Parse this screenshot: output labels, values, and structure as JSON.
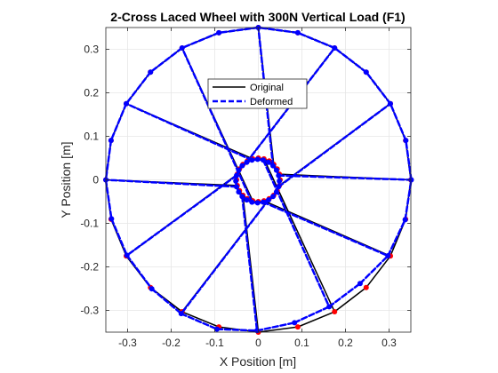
{
  "chart_data": {
    "type": "line",
    "title": "2-Cross Laced Wheel with 300N Vertical Load (F1)",
    "xlabel": "X Position [m]",
    "ylabel": "Y Position [m]",
    "xlim": [
      -0.35,
      0.35
    ],
    "ylim": [
      -0.35,
      0.35
    ],
    "xticks": [
      -0.3,
      -0.2,
      -0.1,
      0,
      0.1,
      0.2,
      0.3
    ],
    "yticks": [
      -0.3,
      -0.2,
      -0.1,
      0,
      0.1,
      0.2,
      0.3
    ],
    "xtick_labels": [
      "-0.3",
      "-0.2",
      "-0.1",
      "0",
      "0.1",
      "0.2",
      "0.3"
    ],
    "ytick_labels": [
      "-0.3",
      "-0.2",
      "-0.1",
      "0",
      "0.1",
      "0.2",
      "0.3"
    ],
    "grid": true,
    "legend_position": "top-center",
    "legend": [
      {
        "label": "Original",
        "color": "#000000",
        "style": "solid",
        "width": 1.5
      },
      {
        "label": "Deformed",
        "color": "#0000ff",
        "style": "dashed",
        "width": 2.5
      }
    ],
    "colors": {
      "original": "#000000",
      "original_nodes": "#ff0000",
      "deformed": "#0000ff",
      "deformed_nodes": "#0000ff"
    },
    "rim_radius": 0.35,
    "hub_radius": 0.05,
    "node_count": 24,
    "original": {
      "rim": [
        [
          0.35,
          0
        ],
        [
          0.338,
          0.0906
        ],
        [
          0.3031,
          0.175
        ],
        [
          0.2475,
          0.2475
        ],
        [
          0.175,
          0.3031
        ],
        [
          0.0906,
          0.338
        ],
        [
          0,
          0.35
        ],
        [
          -0.0906,
          0.338
        ],
        [
          -0.175,
          0.3031
        ],
        [
          -0.2475,
          0.2475
        ],
        [
          -0.3031,
          0.175
        ],
        [
          -0.338,
          0.0906
        ],
        [
          -0.35,
          0
        ],
        [
          -0.338,
          -0.0906
        ],
        [
          -0.3031,
          -0.175
        ],
        [
          -0.2475,
          -0.2475
        ],
        [
          -0.175,
          -0.3031
        ],
        [
          -0.0906,
          -0.338
        ],
        [
          0,
          -0.35
        ],
        [
          0.0906,
          -0.338
        ],
        [
          0.175,
          -0.3031
        ],
        [
          0.2475,
          -0.2475
        ],
        [
          0.3031,
          -0.175
        ],
        [
          0.338,
          -0.0906
        ]
      ],
      "hub": [
        [
          0.05,
          0
        ],
        [
          0.0483,
          0.0129
        ],
        [
          0.0433,
          0.025
        ],
        [
          0.0354,
          0.0354
        ],
        [
          0.025,
          0.0433
        ],
        [
          0.0129,
          0.0483
        ],
        [
          0,
          0.05
        ],
        [
          -0.0129,
          0.0483
        ],
        [
          -0.025,
          0.0433
        ],
        [
          -0.0354,
          0.0354
        ],
        [
          -0.0433,
          0.025
        ],
        [
          -0.0483,
          0.0129
        ],
        [
          -0.05,
          0
        ],
        [
          -0.0483,
          -0.0129
        ],
        [
          -0.0433,
          -0.025
        ],
        [
          -0.0354,
          -0.0354
        ],
        [
          -0.025,
          -0.0433
        ],
        [
          -0.0129,
          -0.0483
        ],
        [
          0,
          -0.05
        ],
        [
          0.0129,
          -0.0483
        ],
        [
          0.025,
          -0.0433
        ],
        [
          0.0354,
          -0.0354
        ],
        [
          0.0433,
          -0.025
        ],
        [
          0.0483,
          -0.0129
        ]
      ],
      "spokes": [
        [
          [
            0.0483,
            -0.0129
          ],
          [
            0.3031,
            0.175
          ]
        ],
        [
          [
            -0.0483,
            0.0129
          ],
          [
            -0.3031,
            -0.175
          ]
        ],
        [
          [
            0.0354,
            0.0354
          ],
          [
            0.0,
            0.35
          ]
        ],
        [
          [
            -0.0354,
            -0.0354
          ],
          [
            0.0,
            -0.35
          ]
        ],
        [
          [
            -0.0129,
            0.0483
          ],
          [
            -0.3031,
            0.175
          ]
        ],
        [
          [
            0.0129,
            -0.0483
          ],
          [
            0.3031,
            -0.175
          ]
        ],
        [
          [
            -0.0483,
            -0.0129
          ],
          [
            -0.35,
            0.0
          ]
        ],
        [
          [
            0.0483,
            0.0129
          ],
          [
            0.35,
            0.0
          ]
        ],
        [
          [
            -0.025,
            0.0433
          ],
          [
            0.175,
            0.3031
          ]
        ],
        [
          [
            0.025,
            -0.0433
          ],
          [
            -0.175,
            -0.3031
          ]
        ],
        [
          [
            -0.0129,
            -0.0483
          ],
          [
            -0.175,
            0.3031
          ]
        ],
        [
          [
            0.0129,
            0.0483
          ],
          [
            0.175,
            -0.3031
          ]
        ]
      ]
    },
    "deformed": {
      "rim": [
        [
          0.351,
          0
        ],
        [
          0.3385,
          0.0906
        ],
        [
          0.303,
          0.175
        ],
        [
          0.2475,
          0.2475
        ],
        [
          0.175,
          0.3031
        ],
        [
          0.0906,
          0.338
        ],
        [
          0,
          0.35
        ],
        [
          -0.0906,
          0.338
        ],
        [
          -0.175,
          0.3031
        ],
        [
          -0.2475,
          0.2475
        ],
        [
          -0.3031,
          0.175
        ],
        [
          -0.338,
          0.0906
        ],
        [
          -0.35,
          0
        ],
        [
          -0.337,
          -0.0896
        ],
        [
          -0.3015,
          -0.1735
        ],
        [
          -0.2445,
          -0.2505
        ],
        [
          -0.177,
          -0.3075
        ],
        [
          -0.095,
          -0.343
        ],
        [
          -0.003,
          -0.3465
        ],
        [
          0.083,
          -0.3282
        ],
        [
          0.1625,
          -0.2915
        ],
        [
          0.2335,
          -0.2383
        ],
        [
          0.2975,
          -0.1745
        ],
        [
          0.337,
          -0.0916
        ]
      ],
      "hub": [
        [
          0.0483,
          -0.0029
        ],
        [
          0.0466,
          0.01
        ],
        [
          0.0416,
          0.0221
        ],
        [
          0.0337,
          0.0325
        ],
        [
          0.0233,
          0.0404
        ],
        [
          0.0112,
          0.0454
        ],
        [
          -0.0017,
          0.0471
        ],
        [
          -0.0146,
          0.0454
        ],
        [
          -0.0267,
          0.0404
        ],
        [
          -0.0371,
          0.0325
        ],
        [
          -0.045,
          0.0221
        ],
        [
          -0.05,
          0.01
        ],
        [
          -0.0517,
          -0.0029
        ],
        [
          -0.05,
          -0.0158
        ],
        [
          -0.045,
          -0.0279
        ],
        [
          -0.0371,
          -0.0383
        ],
        [
          -0.0267,
          -0.0462
        ],
        [
          -0.0146,
          -0.0512
        ],
        [
          -0.0017,
          -0.0529
        ],
        [
          0.0112,
          -0.0512
        ],
        [
          0.0233,
          -0.0462
        ],
        [
          0.0337,
          -0.0383
        ],
        [
          0.0416,
          -0.0279
        ],
        [
          0.0466,
          -0.0158
        ]
      ],
      "spokes": [
        [
          [
            0.0466,
            -0.0158
          ],
          [
            0.303,
            0.175
          ]
        ],
        [
          [
            -0.05,
            0.01
          ],
          [
            -0.3015,
            -0.1735
          ]
        ],
        [
          [
            0.0337,
            0.0325
          ],
          [
            0.0,
            0.35
          ]
        ],
        [
          [
            -0.0371,
            -0.0383
          ],
          [
            -0.003,
            -0.3465
          ]
        ],
        [
          [
            -0.0146,
            0.0454
          ],
          [
            -0.3031,
            0.175
          ]
        ],
        [
          [
            0.0112,
            -0.0512
          ],
          [
            0.2975,
            -0.1745
          ]
        ],
        [
          [
            -0.05,
            -0.0158
          ],
          [
            -0.35,
            0.0
          ]
        ],
        [
          [
            0.0466,
            0.01
          ],
          [
            0.351,
            0.0
          ]
        ],
        [
          [
            -0.0267,
            0.0404
          ],
          [
            0.175,
            0.3031
          ]
        ],
        [
          [
            0.0233,
            -0.0462
          ],
          [
            -0.177,
            -0.3075
          ]
        ],
        [
          [
            -0.0146,
            -0.0512
          ],
          [
            -0.175,
            0.3031
          ]
        ],
        [
          [
            0.0112,
            0.0454
          ],
          [
            0.1625,
            -0.2915
          ]
        ]
      ]
    }
  }
}
